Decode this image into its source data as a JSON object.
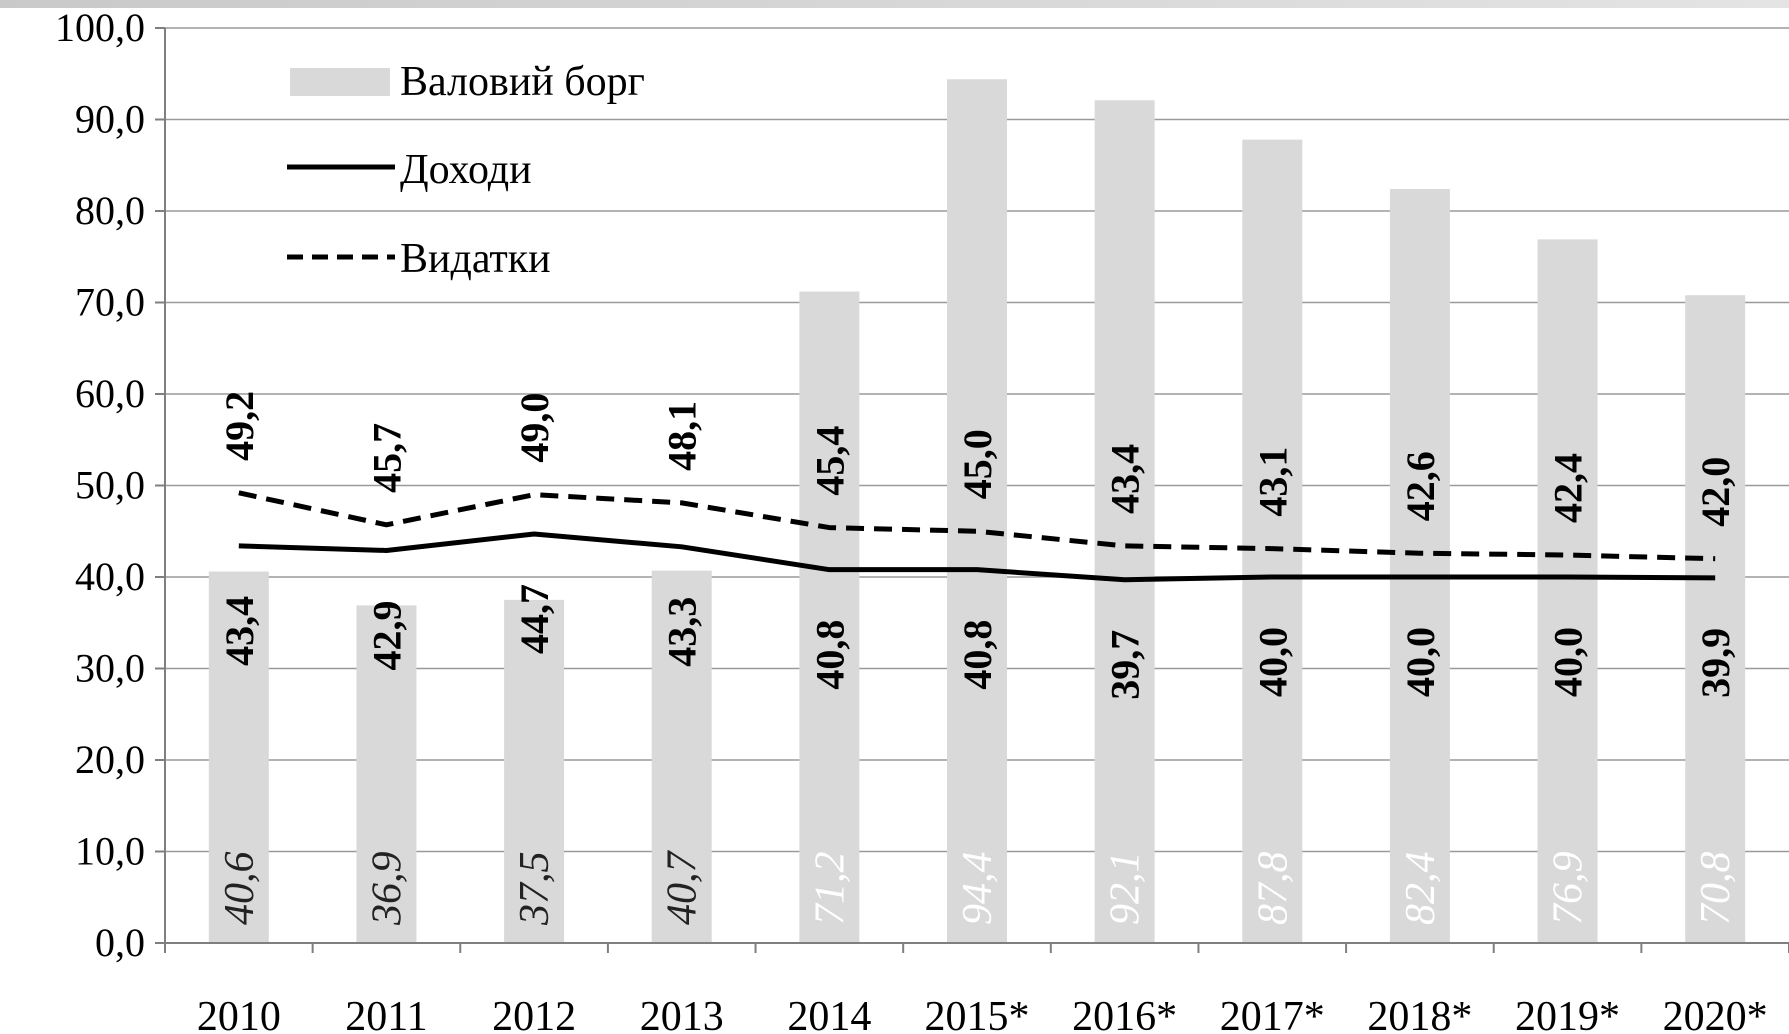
{
  "chart_data": {
    "type": "bar",
    "categories": [
      "2010",
      "2011",
      "2012",
      "2013",
      "2014",
      "2015*",
      "2016*",
      "2017*",
      "2018*",
      "2019*",
      "2020*"
    ],
    "ylim": [
      0,
      100
    ],
    "yticks": [
      "0,0",
      "10,0",
      "20,0",
      "30,0",
      "40,0",
      "50,0",
      "60,0",
      "70,0",
      "80,0",
      "90,0",
      "100,0"
    ],
    "grid": true,
    "legend_position": "top-left",
    "colors": {
      "bar": "#d9d9d9",
      "line": "#000000",
      "grid": "#9a9a9a",
      "axis": "#7f7f7f"
    },
    "series": [
      {
        "name": "Валовий борг",
        "type": "bar",
        "values": [
          40.6,
          36.9,
          37.5,
          40.7,
          71.2,
          94.4,
          92.1,
          87.8,
          82.4,
          76.9,
          70.8
        ],
        "labels": [
          "40,6",
          "36,9",
          "37,5",
          "40,7",
          "71,2",
          "94,4",
          "92,1",
          "87,8",
          "82,4",
          "76,9",
          "70,8"
        ]
      },
      {
        "name": "Доходи",
        "type": "line",
        "style": "solid",
        "values": [
          43.4,
          42.9,
          44.7,
          43.3,
          40.8,
          40.8,
          39.7,
          40.0,
          40.0,
          40.0,
          39.9
        ],
        "labels": [
          "43,4",
          "42,9",
          "44,7",
          "43,3",
          "40,8",
          "40,8",
          "39,7",
          "40,0",
          "40,0",
          "40,0",
          "39,9"
        ]
      },
      {
        "name": "Видатки",
        "type": "line",
        "style": "dashed",
        "values": [
          49.2,
          45.7,
          49.0,
          48.1,
          45.4,
          45.0,
          43.4,
          43.1,
          42.6,
          42.4,
          42.0
        ],
        "labels": [
          "49,2",
          "45,7",
          "49,0",
          "48,1",
          "45,4",
          "45,0",
          "43,4",
          "43,1",
          "42,6",
          "42,4",
          "42,0"
        ]
      }
    ]
  }
}
